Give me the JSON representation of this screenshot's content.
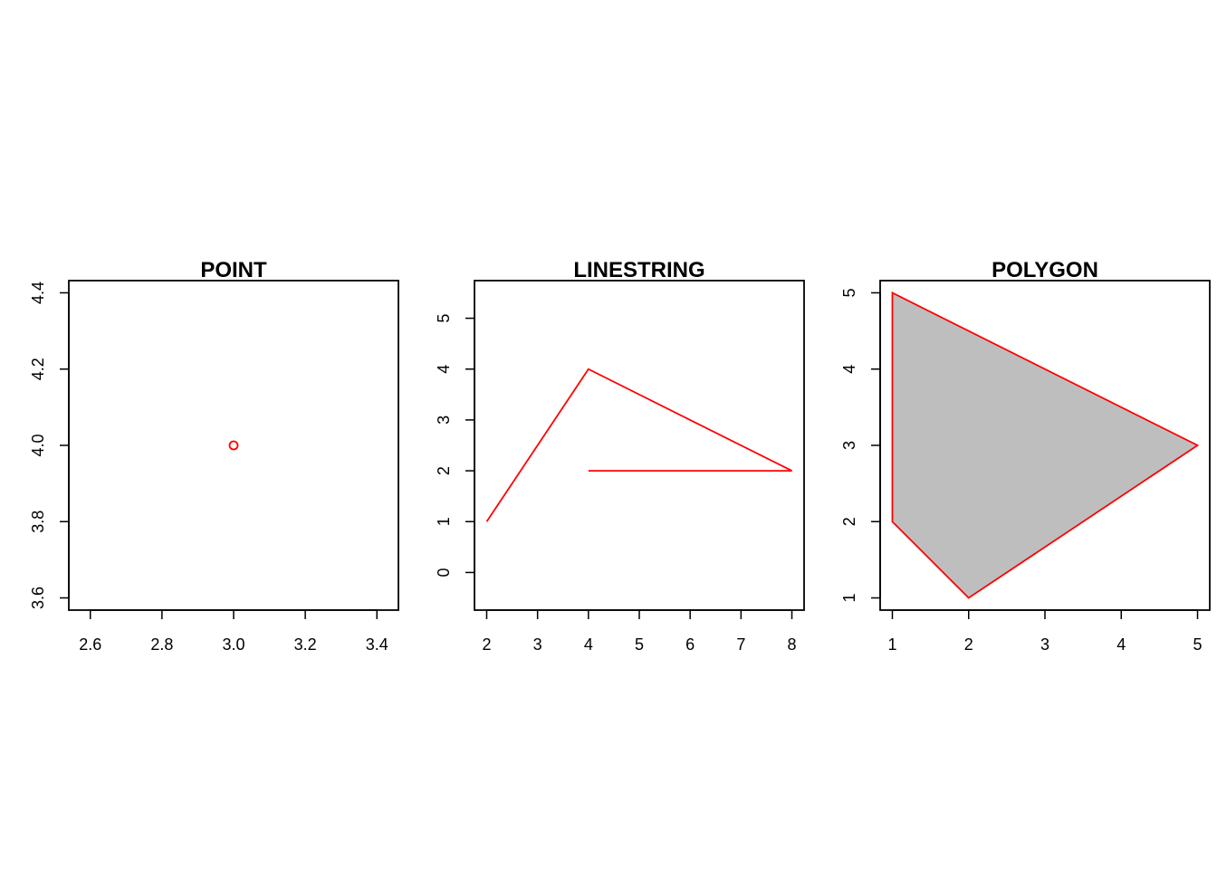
{
  "chart_data": [
    {
      "type": "scatter",
      "title": "POINT",
      "xlim": [
        2.6,
        3.4
      ],
      "ylim": [
        3.6,
        4.4
      ],
      "xticks": [
        "2.6",
        "2.8",
        "3.0",
        "3.2",
        "3.4"
      ],
      "yticks": [
        "3.6",
        "3.8",
        "4.0",
        "4.2",
        "4.4"
      ],
      "points": [
        {
          "x": 3.0,
          "y": 4.0
        }
      ],
      "color": "#ff0000",
      "marker": "open-circle"
    },
    {
      "type": "line",
      "title": "LINESTRING",
      "xlim": [
        2,
        8
      ],
      "ylim": [
        0,
        5
      ],
      "xticks": [
        "2",
        "3",
        "4",
        "5",
        "6",
        "7",
        "8"
      ],
      "yticks": [
        "0",
        "1",
        "2",
        "3",
        "4",
        "5"
      ],
      "points": [
        {
          "x": 2,
          "y": 1
        },
        {
          "x": 4,
          "y": 4
        },
        {
          "x": 8,
          "y": 2
        },
        {
          "x": 4,
          "y": 2
        }
      ],
      "color": "#ff0000"
    },
    {
      "type": "area",
      "title": "POLYGON",
      "xlim": [
        1,
        5
      ],
      "ylim": [
        1,
        5
      ],
      "xticks": [
        "1",
        "2",
        "3",
        "4",
        "5"
      ],
      "yticks": [
        "1",
        "2",
        "3",
        "4",
        "5"
      ],
      "points": [
        {
          "x": 1,
          "y": 5
        },
        {
          "x": 5,
          "y": 3
        },
        {
          "x": 2,
          "y": 1
        },
        {
          "x": 1,
          "y": 2
        }
      ],
      "color": "#ff0000",
      "fill": "#bebebe"
    }
  ]
}
